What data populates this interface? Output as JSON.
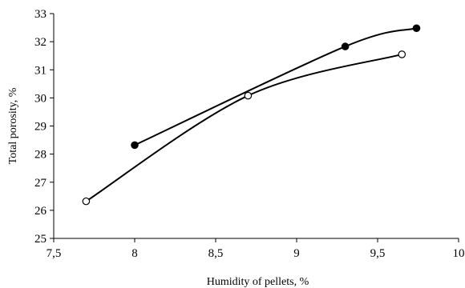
{
  "chart_data": {
    "type": "line",
    "title": "",
    "xlabel": "Humidity of pellets, %",
    "ylabel": "Total porosity, %",
    "xlim": [
      7.5,
      10
    ],
    "ylim": [
      25,
      33
    ],
    "x_ticks": [
      7.5,
      8,
      8.5,
      9,
      9.5,
      10
    ],
    "x_tick_labels": [
      "7,5",
      "8",
      "8,5",
      "9",
      "9,5",
      "10"
    ],
    "y_ticks": [
      25,
      26,
      27,
      28,
      29,
      30,
      31,
      32,
      33
    ],
    "y_tick_labels": [
      "25",
      "26",
      "27",
      "28",
      "29",
      "30",
      "31",
      "32",
      "33"
    ],
    "grid": false,
    "legend": "none",
    "series": [
      {
        "marker": "filled-circle",
        "color": "#000000",
        "x": [
          8.0,
          9.3,
          9.74
        ],
        "y": [
          28.32,
          31.83,
          32.48
        ]
      },
      {
        "marker": "open-circle",
        "color": "#000000",
        "x": [
          7.7,
          8.7,
          9.65
        ],
        "y": [
          26.32,
          30.08,
          31.55
        ]
      }
    ]
  }
}
